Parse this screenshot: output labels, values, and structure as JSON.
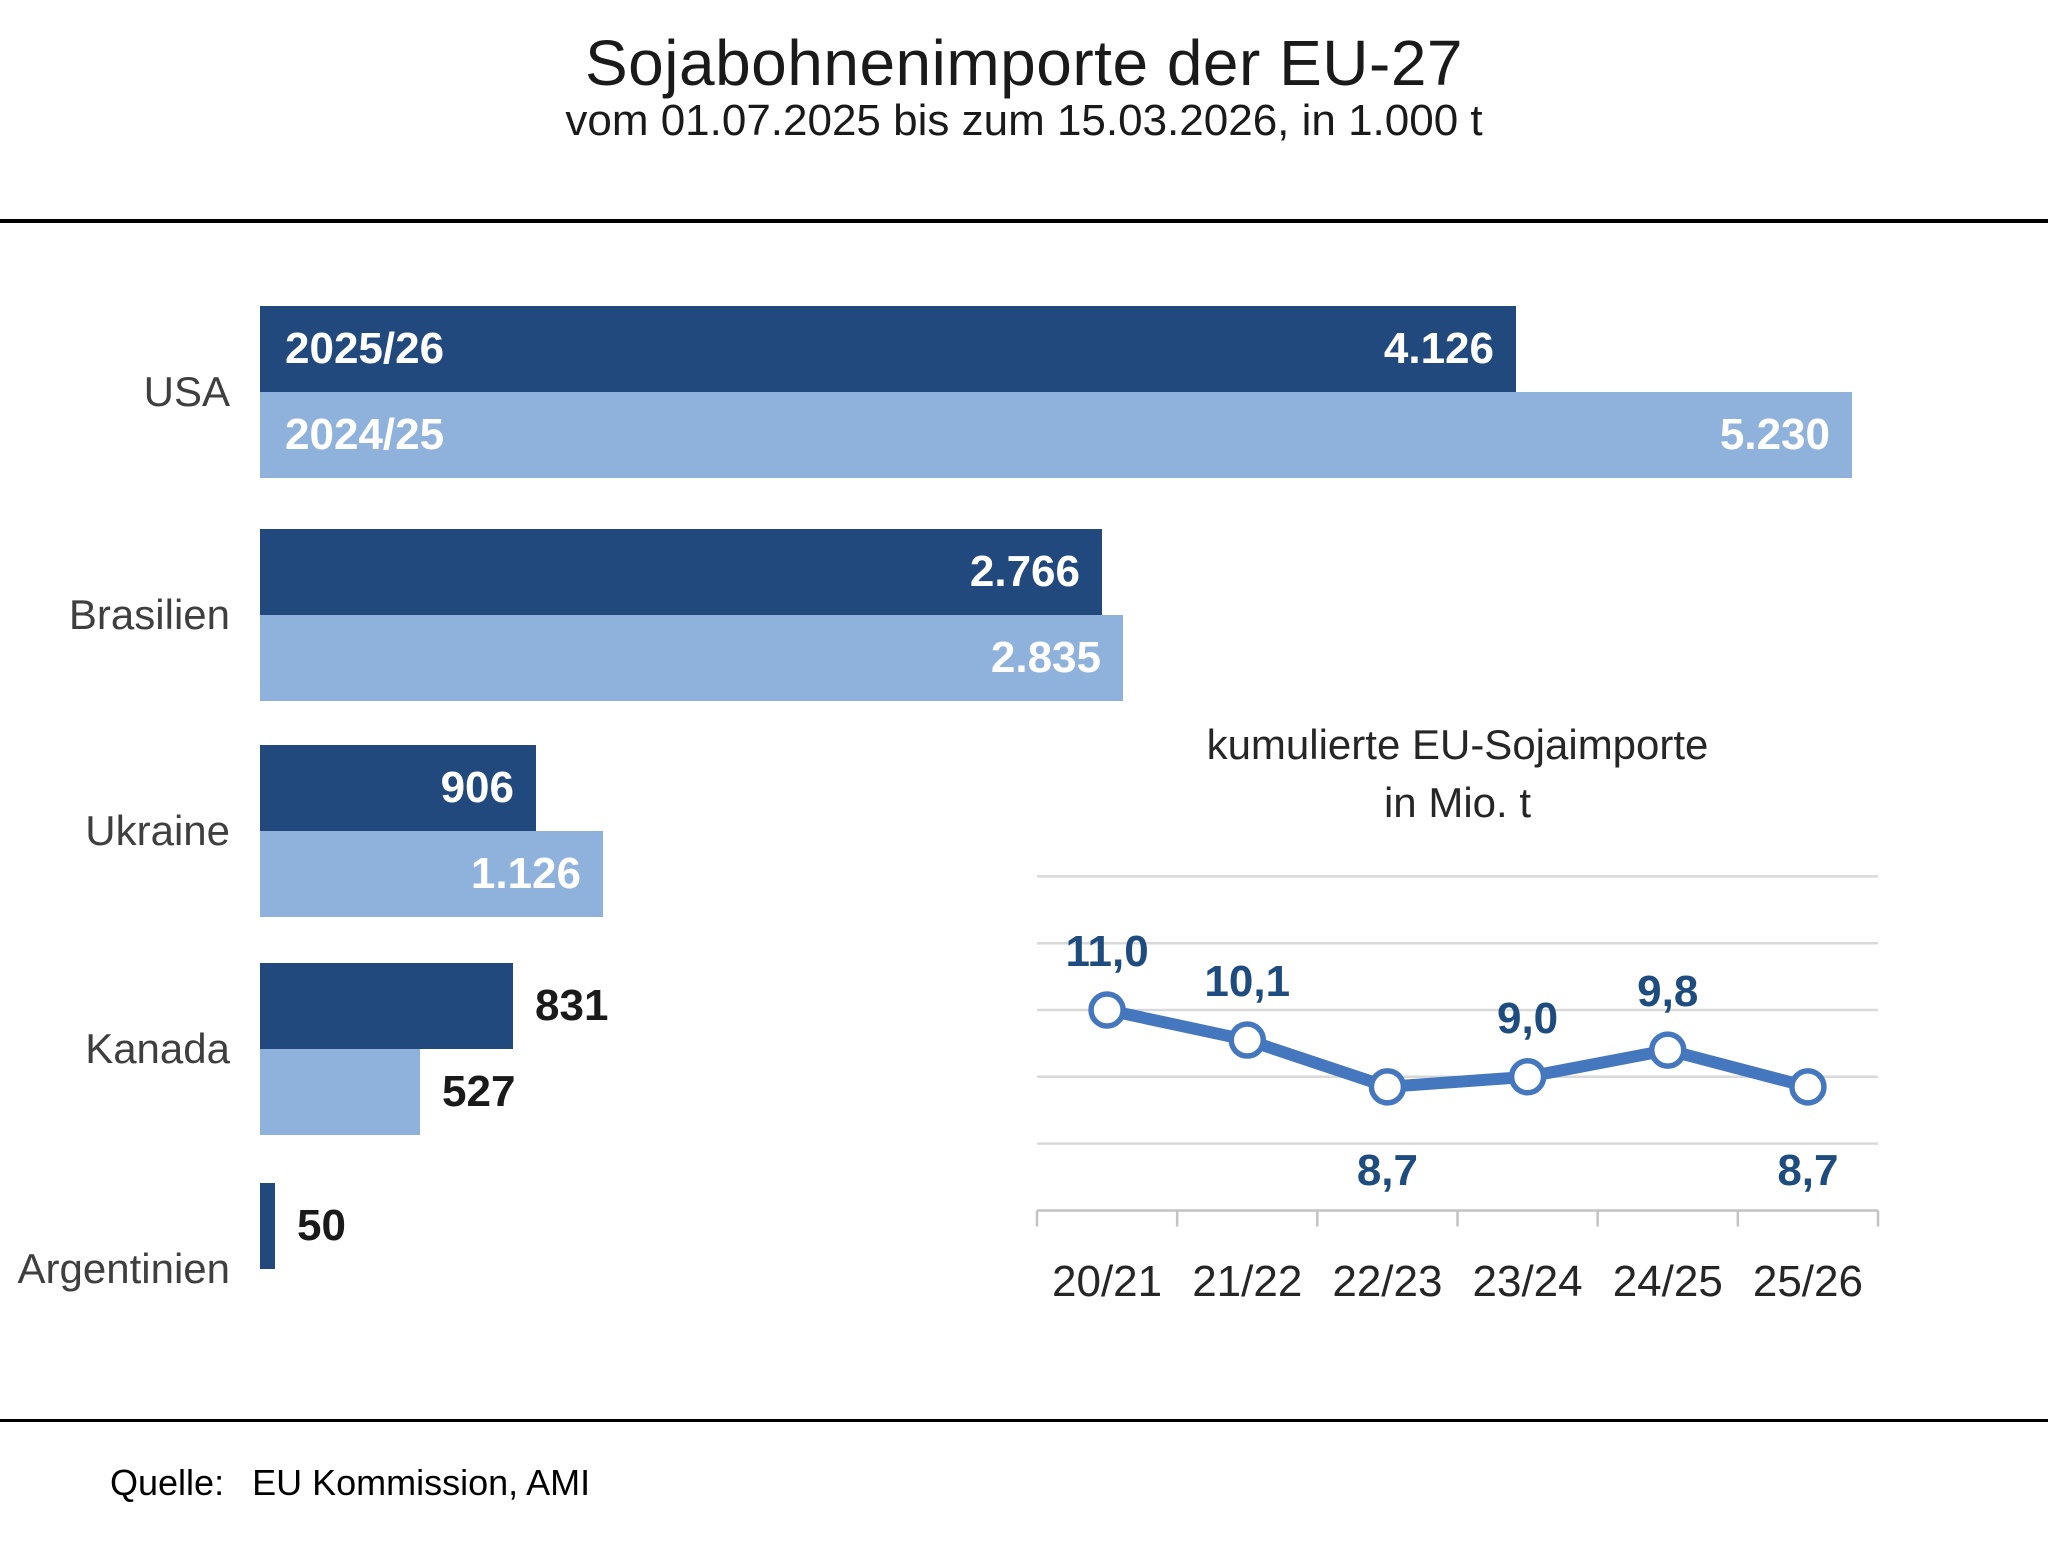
{
  "page": {
    "title": "Sojabohnenimporte der EU-27",
    "subtitle": "vom 01.07.2025 bis zum 15.03.2026, in 1.000 t",
    "source_label": "Quelle:",
    "source_value": "EU Kommission, AMI"
  },
  "colors": {
    "dark_blue": "#22497D",
    "light_blue": "#8FB2DC",
    "line_blue": "#4577BE",
    "point_label_blue": "#1F4C7E",
    "gridline": "#D9D9D9",
    "axis": "#C3C3C3",
    "text_dark": "#1a1a1a",
    "category_label": "#3f3f3f"
  },
  "chart_data": [
    {
      "type": "bar",
      "orientation": "horizontal",
      "title": "Sojabohnenimporte der EU-27",
      "subtitle": "vom 01.07.2025 bis zum 15.03.2026, in 1.000 t",
      "unit": "1.000 t",
      "categories": [
        "USA",
        "Brasilien",
        "Ukraine",
        "Kanada",
        "Argentinien"
      ],
      "series": [
        {
          "name": "2025/26",
          "color": "#22497D",
          "values": [
            4126,
            2766,
            906,
            831,
            50
          ],
          "value_labels": [
            "4.126",
            "2.766",
            "906",
            "831",
            "50"
          ]
        },
        {
          "name": "2024/25",
          "color": "#8FB2DC",
          "values": [
            5230,
            2835,
            1126,
            527,
            null
          ],
          "value_labels": [
            "5.230",
            "2.835",
            "1.126",
            "527",
            null
          ]
        }
      ],
      "series_name_shown_on_category": "USA",
      "xlim": [
        0,
        5230
      ],
      "grid": false,
      "legend": "inside-first-bars"
    },
    {
      "type": "line",
      "title": "kumulierte EU-Sojaimporte",
      "subtitle": "in Mio. t",
      "x": [
        "20/21",
        "21/22",
        "22/23",
        "23/24",
        "24/25",
        "25/26"
      ],
      "values": [
        11.0,
        10.1,
        8.7,
        9.0,
        9.8,
        8.7
      ],
      "value_labels": [
        "11,0",
        "10,1",
        "8,7",
        "9,0",
        "9,8",
        "8,7"
      ],
      "label_positions": [
        "above",
        "above",
        "below",
        "above",
        "above",
        "below"
      ],
      "ylabel": "Mio. t",
      "ylim": [
        5,
        15.6
      ],
      "gridline_values": [
        15,
        13,
        11,
        9,
        7
      ],
      "baseline_value": 5,
      "grid": true,
      "legend": false
    }
  ]
}
